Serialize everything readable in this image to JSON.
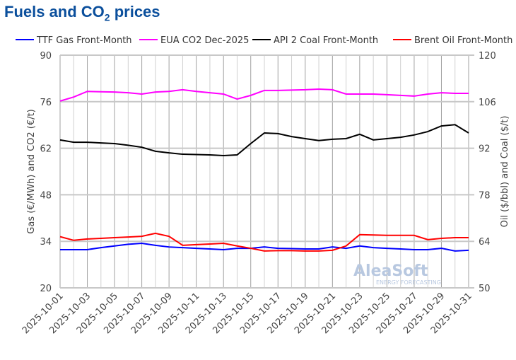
{
  "chart_data": {
    "type": "line",
    "title": "Fuels and CO",
    "title_sub": "2",
    "title_suffix": " prices",
    "ylabel_left": "Gas (€/MWh) and CO2 (€/t)",
    "ylabel_right": "Oil ($/bbl) and Coal ($/t)",
    "ylim_left": [
      20,
      90
    ],
    "ylim_right": [
      50,
      120
    ],
    "yticks_left": [
      20,
      34,
      48,
      62,
      76,
      90
    ],
    "yticks_right": [
      50,
      64,
      78,
      92,
      106,
      120
    ],
    "grid": true,
    "legend_position": "top",
    "watermark": "AleaSoft ENERGY FORECASTING",
    "x": [
      "2025-10-01",
      "2025-10-02",
      "2025-10-03",
      "2025-10-04",
      "2025-10-05",
      "2025-10-06",
      "2025-10-07",
      "2025-10-08",
      "2025-10-09",
      "2025-10-10",
      "2025-10-11",
      "2025-10-12",
      "2025-10-13",
      "2025-10-14",
      "2025-10-15",
      "2025-10-16",
      "2025-10-17",
      "2025-10-18",
      "2025-10-19",
      "2025-10-20",
      "2025-10-21",
      "2025-10-22",
      "2025-10-23",
      "2025-10-24",
      "2025-10-25",
      "2025-10-26",
      "2025-10-27",
      "2025-10-28",
      "2025-10-29",
      "2025-10-30",
      "2025-10-31"
    ],
    "series": [
      {
        "name": "TTF Gas Front-Month",
        "axis": "left",
        "color": "#0000ff",
        "values": [
          31.5,
          31.5,
          31.5,
          32.1,
          32.6,
          33.1,
          33.4,
          32.8,
          32.3,
          32.1,
          31.9,
          31.7,
          31.5,
          31.9,
          31.9,
          32.3,
          31.9,
          31.8,
          31.7,
          31.7,
          32.3,
          31.9,
          32.6,
          32.1,
          31.9,
          31.7,
          31.5,
          31.5,
          31.9,
          31.1,
          31.3
        ]
      },
      {
        "name": "EUA CO2 Dec-2025",
        "axis": "left",
        "color": "#ff00ff",
        "values": [
          76.2,
          77.4,
          79.1,
          79.0,
          78.9,
          78.7,
          78.3,
          78.9,
          79.1,
          79.6,
          79.1,
          78.7,
          78.3,
          76.8,
          77.9,
          79.4,
          79.4,
          79.5,
          79.6,
          79.8,
          79.6,
          78.3,
          78.3,
          78.3,
          78.1,
          77.9,
          77.7,
          78.3,
          78.7,
          78.5,
          78.5
        ]
      },
      {
        "name": "API 2 Coal Front-Month",
        "axis": "right",
        "color": "#000000",
        "values": [
          94.5,
          93.8,
          93.8,
          93.6,
          93.4,
          92.9,
          92.3,
          91.1,
          90.6,
          90.2,
          90.1,
          90.0,
          89.8,
          90.0,
          93.4,
          96.6,
          96.4,
          95.5,
          94.9,
          94.3,
          94.7,
          94.9,
          96.2,
          94.5,
          94.9,
          95.3,
          96.0,
          97.0,
          98.7,
          99.1,
          96.6
        ]
      },
      {
        "name": "Brent Oil Front-Month",
        "axis": "right",
        "color": "#ff0000",
        "values": [
          65.4,
          64.3,
          64.7,
          64.9,
          65.1,
          65.3,
          65.5,
          66.4,
          65.5,
          62.8,
          63.0,
          63.2,
          63.4,
          62.6,
          61.9,
          61.1,
          61.2,
          61.2,
          61.1,
          61.1,
          61.3,
          62.6,
          66.0,
          65.9,
          65.8,
          65.8,
          65.8,
          64.5,
          64.9,
          65.1,
          65.1
        ]
      }
    ]
  }
}
